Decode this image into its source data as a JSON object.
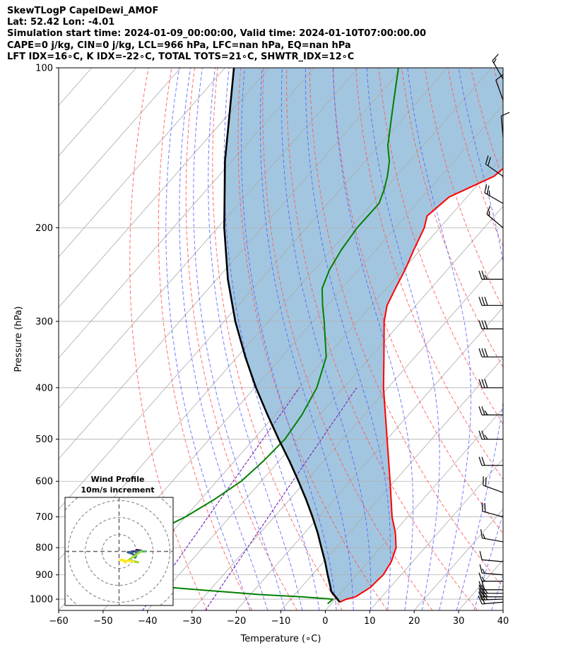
{
  "header": {
    "lines": [
      "SkewTLogP CapelDewi_AMOF",
      "Lat: 52.42   Lon: -4.01",
      "Simulation start time: 2024-01-09_00:00:00, Valid time: 2024-01-10T07:00:00.00",
      "CAPE=0 j/kg, CIN=0 j/kg, LCL=966 hPa, LFC=nan hPa, EQ=nan hPa",
      "LFT IDX=16∘C, K IDX=-22∘C, TOTAL TOTS=21∘C, SHWTR_IDX=12∘C"
    ]
  },
  "hodograph": {
    "title": "Wind Profile",
    "subtitle": "10m/s increment"
  },
  "colors": {
    "temperature": "#ff0000",
    "dewpoint": "#008000",
    "parcel": "#000000",
    "cape_fill": "#a3c6e0",
    "dry_adiabats": "#ff5555",
    "moist_adiabats": "#4d5cff",
    "mixing_ratio": "#7a2dbd",
    "isotherms": "#aaaaaa"
  },
  "chart_data": {
    "type": "line",
    "xlabel": "Temperature ($^\\circ$C)",
    "xlabel_display": "Temperature (∘C)",
    "ylabel": "Pressure (hPa)",
    "xlim": [
      -60,
      40
    ],
    "ylim": [
      1050,
      100
    ],
    "y_scale": "log",
    "x_ticks": [
      "−60",
      "−50",
      "−40",
      "−30",
      "−20",
      "−10",
      "0",
      "10",
      "20",
      "30",
      "40"
    ],
    "y_ticks": [
      "100",
      "200",
      "300",
      "400",
      "500",
      "600",
      "700",
      "800",
      "900",
      "1000"
    ],
    "grid": true,
    "series": [
      {
        "name": "temperature",
        "pressure": [
          1013,
          1000,
          990,
          950,
          920,
          900,
          850,
          800,
          750,
          700,
          600,
          500,
          400,
          350,
          300,
          280,
          260,
          240,
          220,
          200,
          190,
          175,
          160,
          150,
          140,
          130,
          120,
          110,
          100
        ],
        "temperature": [
          1.6,
          2.5,
          4.1,
          5.6,
          5.8,
          6.0,
          5.2,
          3.5,
          0.4,
          -3.5,
          -11.0,
          -20.0,
          -31.0,
          -37.0,
          -44.0,
          -46.5,
          -48.0,
          -49.5,
          -51.5,
          -53.5,
          -55.2,
          -54.0,
          -48.0,
          -47.0,
          -48.5,
          -50.2,
          -51.0,
          -53.0,
          -55.0
        ]
      },
      {
        "name": "dewpoint",
        "pressure": [
          1020,
          1000,
          990,
          980,
          950,
          900,
          850,
          800,
          750,
          700,
          650,
          600,
          550,
          500,
          450,
          400,
          350,
          300,
          280,
          260,
          240,
          220,
          200,
          180,
          170,
          160,
          150,
          140,
          120,
          100
        ],
        "temperature": [
          -0.8,
          -0.5,
          -8.0,
          -18.0,
          -40.0,
          -54.0,
          -57.0,
          -56.0,
          -54.0,
          -50.0,
          -47.0,
          -44.5,
          -43.5,
          -43.0,
          -44.0,
          -46.0,
          -50.0,
          -57.5,
          -61.0,
          -64.5,
          -66.5,
          -67.8,
          -68.6,
          -68.5,
          -70.0,
          -72.0,
          -74.5,
          -78.0,
          -84.0,
          -91.0
        ]
      },
      {
        "name": "parcel",
        "pressure": [
          1013,
          1000,
          966,
          950,
          900,
          850,
          800,
          750,
          700,
          650,
          600,
          550,
          500,
          450,
          400,
          350,
          300,
          250,
          200,
          150,
          100
        ],
        "temperature": [
          1.6,
          0.5,
          -2.5,
          -3.4,
          -6.5,
          -9.7,
          -13.3,
          -17.1,
          -21.4,
          -26.2,
          -31.6,
          -37.6,
          -44.4,
          -51.7,
          -59.7,
          -68.2,
          -77.5,
          -87.5,
          -98.5,
          -111.5,
          -128.0
        ]
      }
    ],
    "wind_barbs": [
      {
        "pressure": 1013,
        "speed_kt": 20,
        "direction_deg": 265
      },
      {
        "pressure": 1000,
        "speed_kt": 25,
        "direction_deg": 268
      },
      {
        "pressure": 990,
        "speed_kt": 25,
        "direction_deg": 270
      },
      {
        "pressure": 975,
        "speed_kt": 25,
        "direction_deg": 270
      },
      {
        "pressure": 960,
        "speed_kt": 20,
        "direction_deg": 270
      },
      {
        "pressure": 925,
        "speed_kt": 15,
        "direction_deg": 270
      },
      {
        "pressure": 900,
        "speed_kt": 15,
        "direction_deg": 275
      },
      {
        "pressure": 850,
        "speed_kt": 10,
        "direction_deg": 275
      },
      {
        "pressure": 780,
        "speed_kt": 15,
        "direction_deg": 280
      },
      {
        "pressure": 700,
        "speed_kt": 20,
        "direction_deg": 285
      },
      {
        "pressure": 630,
        "speed_kt": 20,
        "direction_deg": 290
      },
      {
        "pressure": 560,
        "speed_kt": 20,
        "direction_deg": 270
      },
      {
        "pressure": 500,
        "speed_kt": 25,
        "direction_deg": 270
      },
      {
        "pressure": 450,
        "speed_kt": 25,
        "direction_deg": 270
      },
      {
        "pressure": 400,
        "speed_kt": 30,
        "direction_deg": 270
      },
      {
        "pressure": 350,
        "speed_kt": 30,
        "direction_deg": 270
      },
      {
        "pressure": 310,
        "speed_kt": 30,
        "direction_deg": 270
      },
      {
        "pressure": 280,
        "speed_kt": 30,
        "direction_deg": 270
      },
      {
        "pressure": 250,
        "speed_kt": 25,
        "direction_deg": 270
      },
      {
        "pressure": 200,
        "speed_kt": 15,
        "direction_deg": 310
      },
      {
        "pressure": 180,
        "speed_kt": 25,
        "direction_deg": 300
      },
      {
        "pressure": 160,
        "speed_kt": 20,
        "direction_deg": 305
      },
      {
        "pressure": 135,
        "speed_kt": 10,
        "direction_deg": 355
      },
      {
        "pressure": 115,
        "speed_kt": 10,
        "direction_deg": 340
      },
      {
        "pressure": 105,
        "speed_kt": 15,
        "direction_deg": 330
      }
    ]
  }
}
